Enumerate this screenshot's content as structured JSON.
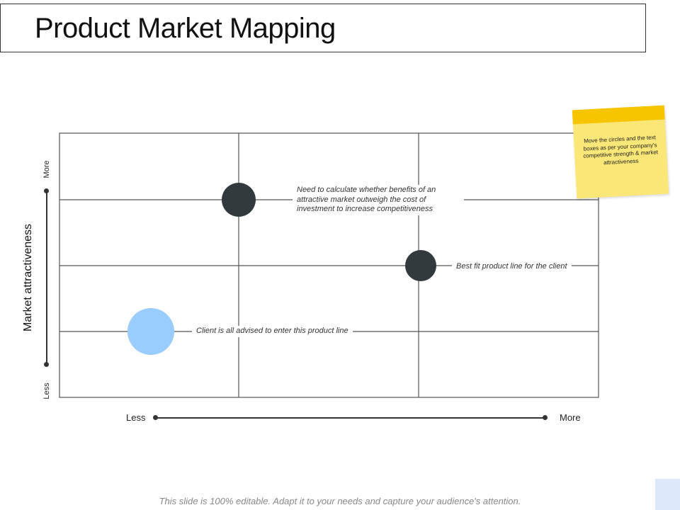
{
  "title": "Product Market Mapping",
  "y_axis": {
    "title": "Market attractiveness",
    "more_label": "More",
    "less_label": "Less"
  },
  "x_axis": {
    "less_label": "Less",
    "more_label": "More"
  },
  "callouts": [
    "Need to calculate whether benefits of an attractive market outweigh the cost of investment to increase competitiveness",
    "Best fit product line for the client",
    "Client is all advised to enter this product line"
  ],
  "colors": {
    "dark_circle": "#323a3e",
    "light_circle": "#99ccff",
    "sticky_note": "#fbe777",
    "sticky_tape": "#f7c400"
  },
  "sticky_note": {
    "text": "Move the circles and the text boxes as per your company's competitive strength & market attractiveness"
  },
  "footer": "This slide is 100% editable. Adapt it to your needs and capture your audience's attention."
}
